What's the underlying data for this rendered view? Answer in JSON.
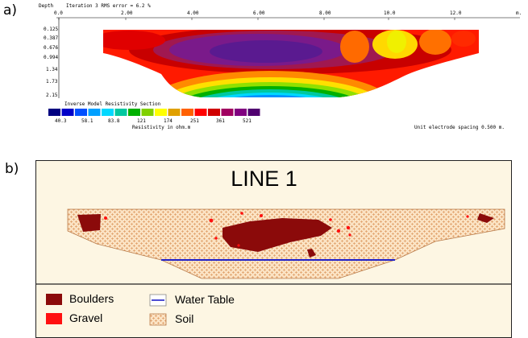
{
  "panel_a": {
    "panel_label": "a)",
    "header_depth": "Depth",
    "header_iteration": "Iteration 3 RMS error = 6.2 %",
    "x_ticks": [
      "0.0",
      "2.00",
      "4.00",
      "6.00",
      "8.00",
      "10.0",
      "12.0"
    ],
    "x_unit": "m.",
    "depth_ticks": [
      "0.125",
      "0.387",
      "0.676",
      "0.994",
      "1.34",
      "1.73",
      "2.15"
    ],
    "colorbar_title": "Inverse Model Resistivity Section",
    "colorbar_labels": [
      "40.3",
      "58.1",
      "83.8",
      "121",
      "174",
      "251",
      "361",
      "521"
    ],
    "colorbar_unit": "Resistivity in ohm.m",
    "electrode_spacing": "Unit electrode spacing 0.500 m.",
    "colorbar_colors": [
      "#000080",
      "#0000c8",
      "#0050ff",
      "#00a0ff",
      "#00d8ff",
      "#00c8a0",
      "#00b000",
      "#80d000",
      "#ffff00",
      "#e0a000",
      "#ff6000",
      "#ff0000",
      "#d00000",
      "#a00060",
      "#800080",
      "#500070"
    ]
  },
  "panel_b": {
    "panel_label": "b)",
    "title": "LINE 1",
    "legend": [
      {
        "label": "Boulders",
        "swatch": "boulders",
        "color": "#8b0a0a"
      },
      {
        "label": "Gravel",
        "swatch": "gravel",
        "color": "#ff1010"
      },
      {
        "label": "Water Table",
        "swatch": "water-table",
        "color": "#2020c8"
      },
      {
        "label": "Soil",
        "swatch": "soil",
        "color": "#f2c79a"
      }
    ]
  }
}
